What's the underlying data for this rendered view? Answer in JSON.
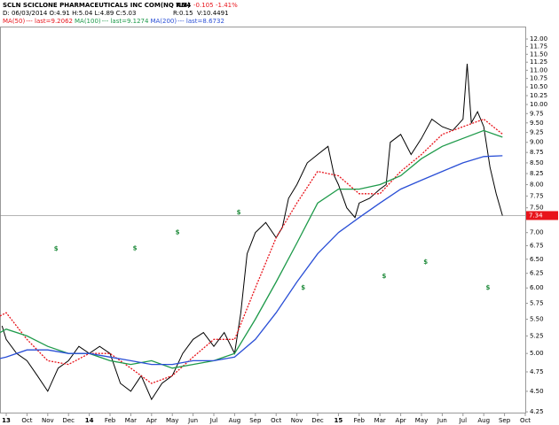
{
  "chart_data": {
    "type": "line",
    "title": "SCLN SCICLONE PHARMACEUTICALS INC COM(NQ NM)",
    "last": "7.34",
    "change": "-0.105",
    "change_pct": "-1.41%",
    "info": "D: 06/03/2014 O:4.91 H:5.04 L:4.89 C:5.03",
    "r": "R:0.15",
    "v": "V:10.4491",
    "log_scale": true,
    "last_price": 7.34,
    "last_price_color": "#e8141b",
    "xlim": [
      -0.3,
      25
    ],
    "xticks": [
      {
        "value": 0,
        "label": "13"
      },
      {
        "value": 1,
        "label": "Oct"
      },
      {
        "value": 2,
        "label": "Nov"
      },
      {
        "value": 3,
        "label": "Dec"
      },
      {
        "value": 4,
        "label": "14"
      },
      {
        "value": 5,
        "label": "Feb"
      },
      {
        "value": 6,
        "label": "Mar"
      },
      {
        "value": 7,
        "label": "Apr"
      },
      {
        "value": 8,
        "label": "May"
      },
      {
        "value": 9,
        "label": "Jun"
      },
      {
        "value": 10,
        "label": "Jul"
      },
      {
        "value": 11,
        "label": "Aug"
      },
      {
        "value": 12,
        "label": "Sep"
      },
      {
        "value": 13,
        "label": "Oct"
      },
      {
        "value": 14,
        "label": "Nov"
      },
      {
        "value": 15,
        "label": "Dec"
      },
      {
        "value": 16,
        "label": "15"
      },
      {
        "value": 17,
        "label": "Feb"
      },
      {
        "value": 18,
        "label": "Mar"
      },
      {
        "value": 19,
        "label": "Apr"
      },
      {
        "value": 20,
        "label": "May"
      },
      {
        "value": 21,
        "label": "Jun"
      },
      {
        "value": 22,
        "label": "Jul"
      },
      {
        "value": 23,
        "label": "Aug"
      },
      {
        "value": 24,
        "label": "Sep"
      },
      {
        "value": 25,
        "label": "Oct"
      }
    ],
    "ylim": [
      4.22,
      12.24
    ],
    "yticks": [
      {
        "value": 4.25,
        "label": "4.25"
      },
      {
        "value": 4.5,
        "label": "4.50"
      },
      {
        "value": 4.75,
        "label": "4.75"
      },
      {
        "value": 5,
        "label": "5.00"
      },
      {
        "value": 5.25,
        "label": "5.25"
      },
      {
        "value": 5.5,
        "label": "5.50"
      },
      {
        "value": 5.75,
        "label": "5.75"
      },
      {
        "value": 6,
        "label": "6.00"
      },
      {
        "value": 6.25,
        "label": "6.25"
      },
      {
        "value": 6.5,
        "label": "6.50"
      },
      {
        "value": 6.75,
        "label": "6.75"
      },
      {
        "value": 7,
        "label": "7.00"
      },
      {
        "value": 7.5,
        "label": "7.50"
      },
      {
        "value": 7.75,
        "label": "7.75"
      },
      {
        "value": 8,
        "label": "8.00"
      },
      {
        "value": 8.25,
        "label": "8.25"
      },
      {
        "value": 8.5,
        "label": "8.50"
      },
      {
        "value": 8.75,
        "label": "8.75"
      },
      {
        "value": 9,
        "label": "9.00"
      },
      {
        "value": 9.25,
        "label": "9.25"
      },
      {
        "value": 9.5,
        "label": "9.50"
      },
      {
        "value": 9.75,
        "label": "9.75"
      },
      {
        "value": 10,
        "label": "10.00"
      },
      {
        "value": 10.25,
        "label": "10.25"
      },
      {
        "value": 10.5,
        "label": "10.50"
      },
      {
        "value": 10.75,
        "label": "10.75"
      },
      {
        "value": 11,
        "label": "11.00"
      },
      {
        "value": 11.25,
        "label": "11.25"
      },
      {
        "value": 11.5,
        "label": "11.50"
      },
      {
        "value": 11.75,
        "label": "11.75"
      },
      {
        "value": 12,
        "label": "12.00"
      }
    ],
    "series": [
      {
        "color": "#000000",
        "x": [
          -0.2,
          0,
          0.5,
          1,
          1.5,
          2,
          2.5,
          3,
          3.5,
          4,
          4.5,
          5,
          5.5,
          6,
          6.5,
          7,
          7.5,
          8,
          8.5,
          9,
          9.5,
          10,
          10.5,
          11,
          11.3,
          11.6,
          12,
          12.5,
          13,
          13.3,
          13.6,
          14,
          14.5,
          15,
          15.5,
          15.8,
          16,
          16.4,
          16.8,
          17,
          17.5,
          18,
          18.3,
          18.5,
          19,
          19.5,
          20,
          20.5,
          21,
          21.5,
          22,
          22.2,
          22.4,
          22.7,
          23,
          23.3,
          23.6,
          23.9
        ],
        "values": [
          5.4,
          5.2,
          5.0,
          4.9,
          4.7,
          4.5,
          4.8,
          4.9,
          5.1,
          5.0,
          5.1,
          5.0,
          4.6,
          4.5,
          4.7,
          4.4,
          4.6,
          4.7,
          5.0,
          5.2,
          5.3,
          5.1,
          5.3,
          5.0,
          5.6,
          6.6,
          7.0,
          7.2,
          6.9,
          7.1,
          7.7,
          8.0,
          8.5,
          8.7,
          8.9,
          8.2,
          8.0,
          7.5,
          7.3,
          7.6,
          7.7,
          7.9,
          8.0,
          9.0,
          9.2,
          8.7,
          9.1,
          9.6,
          9.4,
          9.3,
          9.6,
          11.2,
          9.5,
          9.8,
          9.4,
          8.4,
          7.8,
          7.34
        ]
      },
      {
        "name": "MA(50)",
        "last_label": "--- last=9.2062",
        "color": "#e8141b",
        "dash": true,
        "x": [
          -0.3,
          0,
          1,
          2,
          3,
          4,
          5,
          6,
          7,
          8,
          9,
          10,
          11,
          12,
          13,
          14,
          15,
          16,
          17,
          18,
          19,
          20,
          21,
          22,
          23,
          23.9
        ],
        "values": [
          5.55,
          5.6,
          5.2,
          4.9,
          4.85,
          5.0,
          5.0,
          4.8,
          4.6,
          4.7,
          4.95,
          5.2,
          5.2,
          6.0,
          6.9,
          7.6,
          8.3,
          8.2,
          7.8,
          7.8,
          8.3,
          8.7,
          9.2,
          9.4,
          9.6,
          9.21
        ]
      },
      {
        "name": "MA(100)",
        "last_label": "--- last=9.1274",
        "color": "#1e9a4a",
        "dash": false,
        "x": [
          -0.3,
          0,
          1,
          2,
          3,
          4,
          5,
          6,
          7,
          8,
          9,
          10,
          11,
          12,
          13,
          14,
          15,
          16,
          17,
          18,
          19,
          20,
          21,
          22,
          23,
          23.9
        ],
        "values": [
          5.3,
          5.35,
          5.25,
          5.1,
          5.0,
          5.0,
          4.9,
          4.85,
          4.9,
          4.8,
          4.85,
          4.9,
          5.0,
          5.5,
          6.1,
          6.8,
          7.6,
          7.9,
          7.9,
          8.0,
          8.2,
          8.6,
          8.9,
          9.1,
          9.3,
          9.13
        ]
      },
      {
        "name": "MA(200)",
        "last_label": "--- last=8.6732",
        "color": "#2a4fd6",
        "dash": false,
        "x": [
          -0.3,
          0,
          1,
          2,
          3,
          4,
          5,
          6,
          7,
          8,
          9,
          10,
          11,
          12,
          13,
          14,
          15,
          16,
          17,
          18,
          19,
          20,
          21,
          22,
          23,
          23.9
        ],
        "values": [
          4.93,
          4.95,
          5.05,
          5.05,
          5.0,
          5.0,
          4.95,
          4.9,
          4.85,
          4.85,
          4.9,
          4.9,
          4.95,
          5.2,
          5.6,
          6.1,
          6.6,
          7.0,
          7.3,
          7.6,
          7.9,
          8.1,
          8.3,
          8.5,
          8.65,
          8.67
        ]
      }
    ],
    "annotations": [
      {
        "x": 2.4,
        "y": 6.69,
        "text": "$"
      },
      {
        "x": 6.2,
        "y": 6.7,
        "text": "$"
      },
      {
        "x": 8.25,
        "y": 7.0,
        "text": "$"
      },
      {
        "x": 11.2,
        "y": 7.4,
        "text": "$"
      },
      {
        "x": 14.3,
        "y": 6.0,
        "text": "$"
      },
      {
        "x": 18.2,
        "y": 6.2,
        "text": "$"
      },
      {
        "x": 20.2,
        "y": 6.45,
        "text": "$"
      },
      {
        "x": 23.2,
        "y": 6.0,
        "text": "$"
      }
    ]
  }
}
